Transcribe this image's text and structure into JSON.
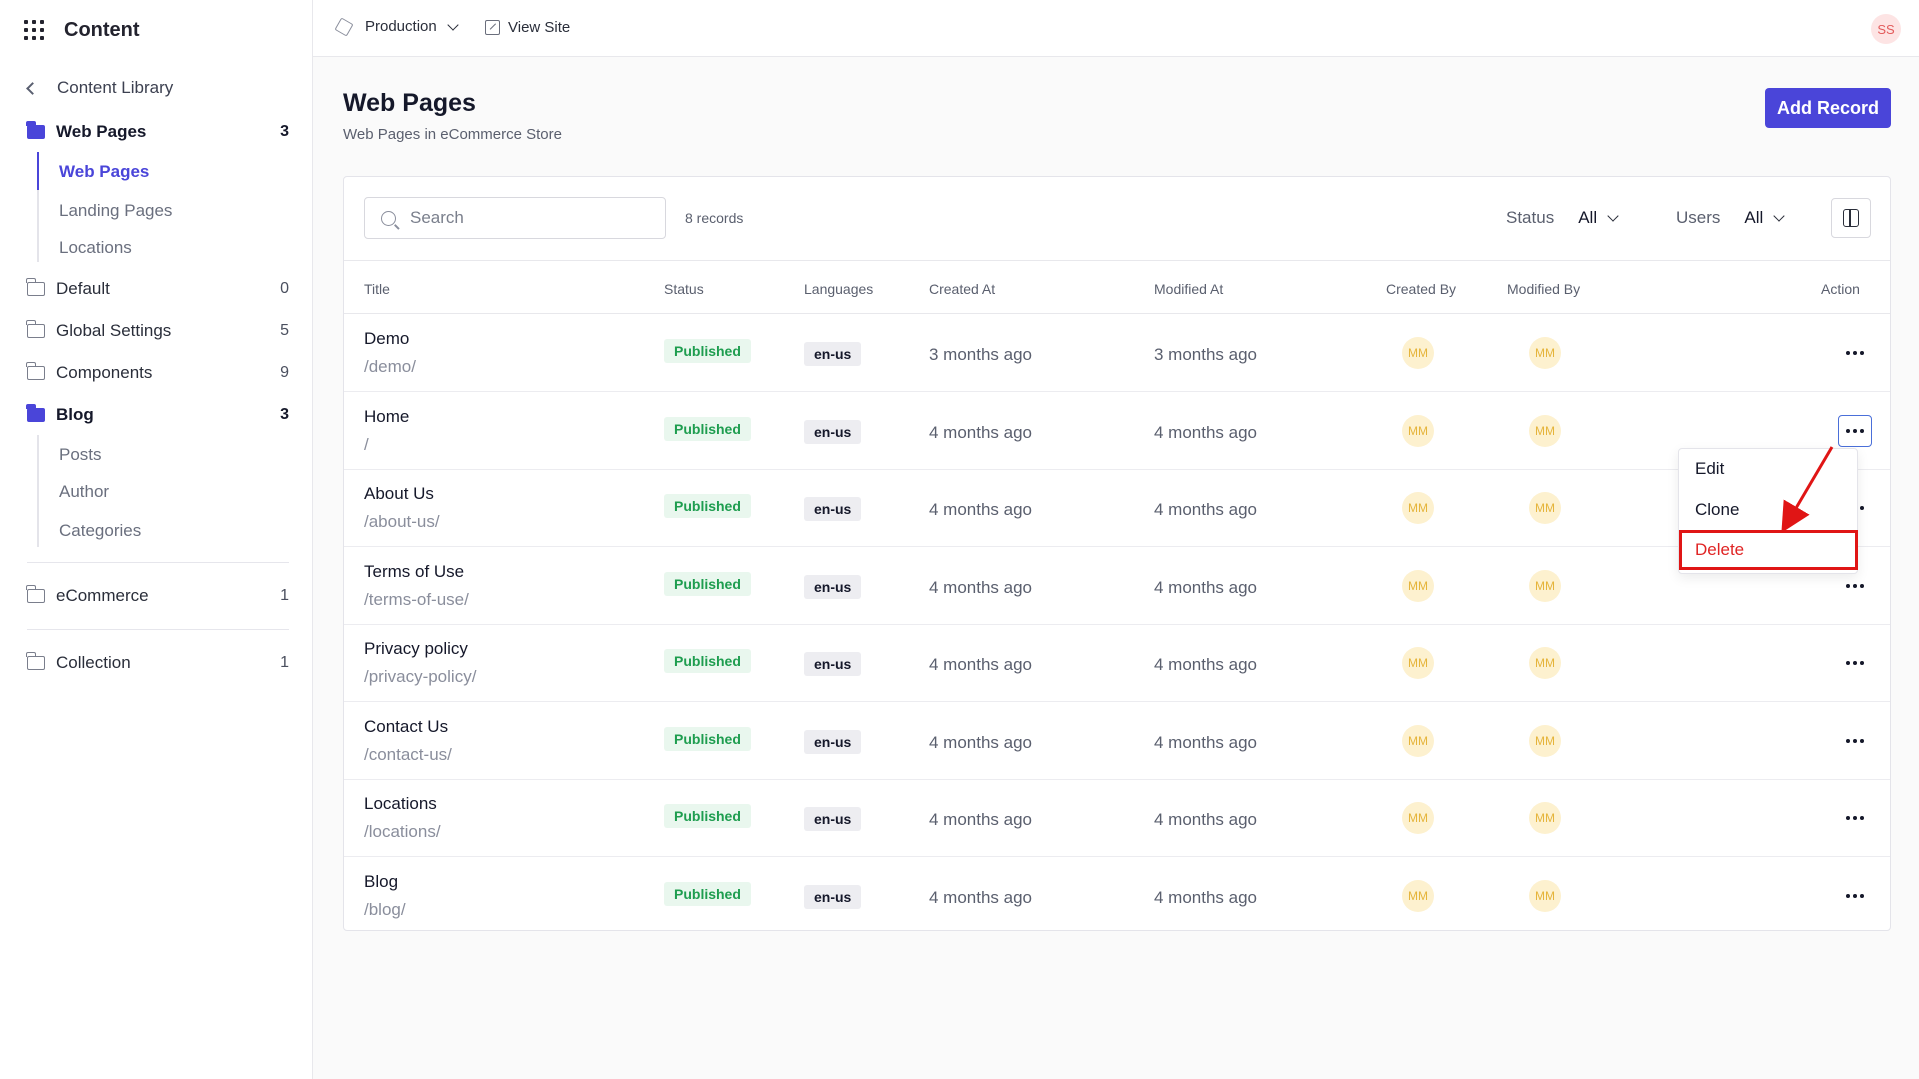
{
  "app": {
    "title": "Content"
  },
  "sidebar": {
    "back_label": "Content Library",
    "groups": [
      {
        "label": "Web Pages",
        "count": "3",
        "open": true
      },
      {
        "label": "Default",
        "count": "0"
      },
      {
        "label": "Global Settings",
        "count": "5"
      },
      {
        "label": "Components",
        "count": "9"
      },
      {
        "label": "Blog",
        "count": "3",
        "open": true
      },
      {
        "label": "eCommerce",
        "count": "1"
      },
      {
        "label": "Collection",
        "count": "1"
      }
    ],
    "web_pages_children": [
      "Web Pages",
      "Landing Pages",
      "Locations"
    ],
    "blog_children": [
      "Posts",
      "Author",
      "Categories"
    ]
  },
  "topbar": {
    "environment": "Production",
    "view_site": "View Site",
    "user_initials": "SS"
  },
  "page": {
    "title": "Web Pages",
    "subtitle": "Web Pages in eCommerce Store",
    "add_button": "Add Record"
  },
  "toolbar": {
    "search_placeholder": "Search",
    "records": "8 records",
    "status_label": "Status",
    "status_value": "All",
    "users_label": "Users",
    "users_value": "All"
  },
  "table": {
    "headers": [
      "Title",
      "Status",
      "Languages",
      "Created At",
      "Modified At",
      "Created By",
      "Modified By",
      "Action"
    ],
    "rows": [
      {
        "title": "Demo",
        "slug": "/demo/",
        "status": "Published",
        "lang": "en-us",
        "created": "3 months ago",
        "modified": "3 months ago",
        "created_by": "MM",
        "modified_by": "MM"
      },
      {
        "title": "Home",
        "slug": "/",
        "status": "Published",
        "lang": "en-us",
        "created": "4 months ago",
        "modified": "4 months ago",
        "created_by": "MM",
        "modified_by": "MM"
      },
      {
        "title": "About Us",
        "slug": "/about-us/",
        "status": "Published",
        "lang": "en-us",
        "created": "4 months ago",
        "modified": "4 months ago",
        "created_by": "MM",
        "modified_by": "MM"
      },
      {
        "title": "Terms of Use",
        "slug": "/terms-of-use/",
        "status": "Published",
        "lang": "en-us",
        "created": "4 months ago",
        "modified": "4 months ago",
        "created_by": "MM",
        "modified_by": "MM"
      },
      {
        "title": "Privacy policy",
        "slug": "/privacy-policy/",
        "status": "Published",
        "lang": "en-us",
        "created": "4 months ago",
        "modified": "4 months ago",
        "created_by": "MM",
        "modified_by": "MM"
      },
      {
        "title": "Contact Us",
        "slug": "/contact-us/",
        "status": "Published",
        "lang": "en-us",
        "created": "4 months ago",
        "modified": "4 months ago",
        "created_by": "MM",
        "modified_by": "MM"
      },
      {
        "title": "Locations",
        "slug": "/locations/",
        "status": "Published",
        "lang": "en-us",
        "created": "4 months ago",
        "modified": "4 months ago",
        "created_by": "MM",
        "modified_by": "MM"
      },
      {
        "title": "Blog",
        "slug": "/blog/",
        "status": "Published",
        "lang": "en-us",
        "created": "4 months ago",
        "modified": "4 months ago",
        "created_by": "MM",
        "modified_by": "MM"
      }
    ]
  },
  "action_menu": {
    "items": [
      "Edit",
      "Clone",
      "Delete"
    ]
  },
  "colors": {
    "accent": "#4a45d9",
    "published": "#1e9d4f",
    "danger": "#e02424",
    "annotation": "#e01515"
  }
}
